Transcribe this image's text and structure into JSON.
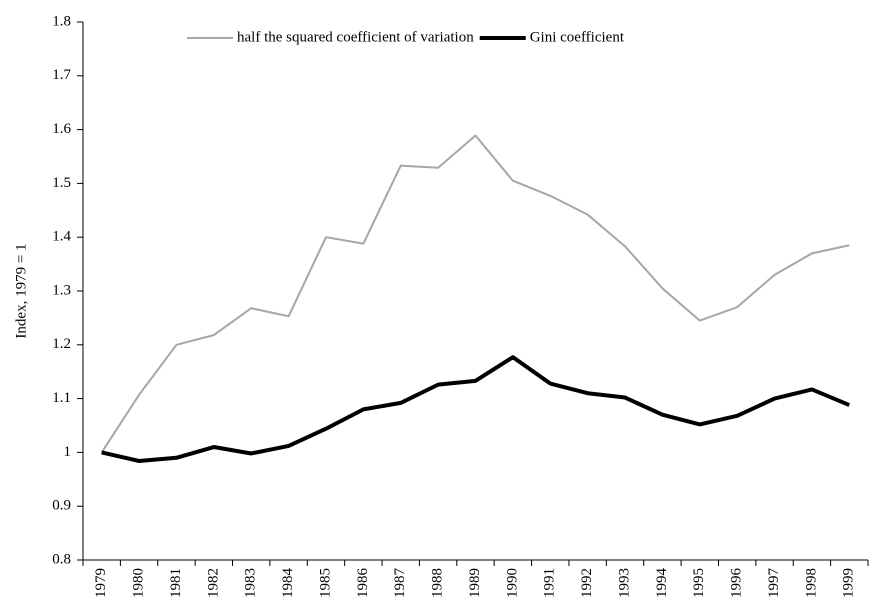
{
  "chart_data": {
    "type": "line",
    "ylabel": "Index, 1979 = 1",
    "categories": [
      "1979",
      "1980",
      "1981",
      "1982",
      "1983",
      "1984",
      "1985",
      "1986",
      "1987",
      "1988",
      "1989",
      "1990",
      "1991",
      "1992",
      "1993",
      "1994",
      "1995",
      "1996",
      "1997",
      "1998",
      "1999"
    ],
    "series": [
      {
        "name": "half the squared coefficient of variation",
        "color": "#a6a6a6",
        "width": 2,
        "values": [
          1.0,
          1.107,
          1.2,
          1.218,
          1.268,
          1.253,
          1.4,
          1.388,
          1.533,
          1.529,
          1.589,
          1.505,
          1.477,
          1.442,
          1.383,
          1.305,
          1.245,
          1.27,
          1.33,
          1.37,
          1.385
        ]
      },
      {
        "name": "Gini coefficient",
        "color": "#000000",
        "width": 4,
        "values": [
          1.0,
          0.984,
          0.99,
          1.01,
          0.998,
          1.012,
          1.044,
          1.08,
          1.092,
          1.126,
          1.133,
          1.177,
          1.128,
          1.11,
          1.102,
          1.07,
          1.052,
          1.068,
          1.1,
          1.117,
          1.088
        ]
      }
    ],
    "ylim": [
      0.8,
      1.8
    ],
    "yticks": [
      0.8,
      0.9,
      1,
      1.1,
      1.2,
      1.3,
      1.4,
      1.5,
      1.6,
      1.7,
      1.8
    ],
    "grid": false,
    "legend": "top"
  }
}
